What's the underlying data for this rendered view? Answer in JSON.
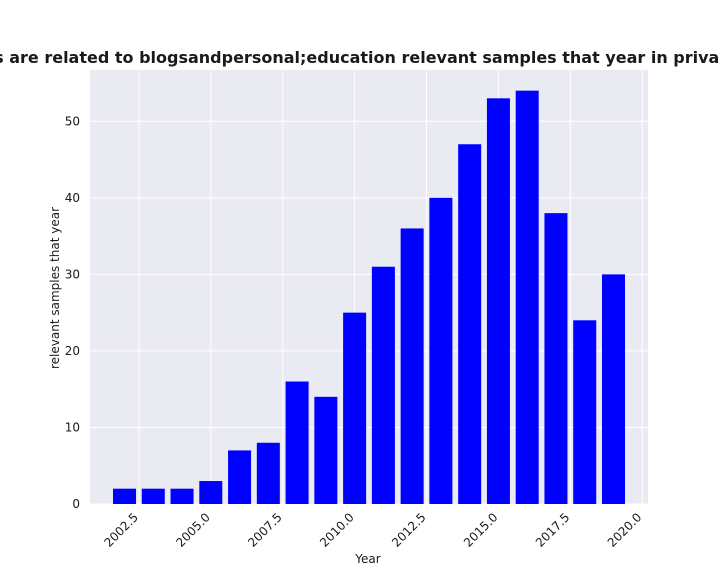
{
  "chart_data": {
    "type": "bar",
    "title": "Categories are related to blogsandpersonal;education relevant samples that year in privacy policies",
    "xlabel": "Year",
    "ylabel": "relevant samples that year",
    "x": [
      2002,
      2003,
      2004,
      2005,
      2006,
      2007,
      2008,
      2009,
      2010,
      2011,
      2012,
      2013,
      2014,
      2015,
      2016,
      2017,
      2018,
      2019
    ],
    "values": [
      2,
      2,
      2,
      3,
      7,
      8,
      16,
      14,
      25,
      31,
      36,
      40,
      47,
      53,
      54,
      38,
      24,
      30
    ],
    "xlim": [
      2000.8,
      2020.2
    ],
    "ylim": [
      0,
      56.7
    ],
    "xticks": [
      2002.5,
      2005.0,
      2007.5,
      2010.0,
      2012.5,
      2015.0,
      2017.5,
      2020.0
    ],
    "xtick_labels": [
      "2002.5",
      "2005.0",
      "2007.5",
      "2010.0",
      "2012.5",
      "2015.0",
      "2017.5",
      "2020.0"
    ],
    "yticks": [
      0,
      10,
      20,
      30,
      40,
      50
    ],
    "ytick_labels": [
      "0",
      "10",
      "20",
      "30",
      "40",
      "50"
    ],
    "grid": true,
    "colors": {
      "bar": "#0000ff",
      "plot_background": "#eaeaf2",
      "grid": "#ffffff"
    }
  }
}
